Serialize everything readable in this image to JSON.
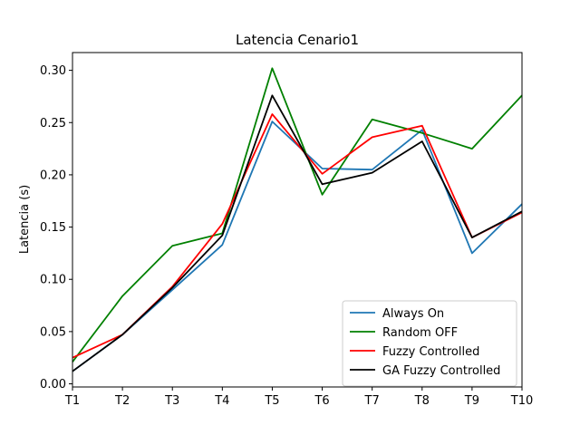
{
  "chart_data": {
    "type": "line",
    "title": "Latencia Cenario1",
    "xlabel": "",
    "ylabel": "Latencia (s)",
    "categories": [
      "T1",
      "T2",
      "T3",
      "T4",
      "T5",
      "T6",
      "T7",
      "T8",
      "T9",
      "T10"
    ],
    "ylim": [
      -0.003,
      0.317
    ],
    "yticks": [
      0.0,
      0.05,
      0.1,
      0.15,
      0.2,
      0.25,
      0.3
    ],
    "ytick_labels": [
      "0.00",
      "0.05",
      "0.10",
      "0.15",
      "0.20",
      "0.25",
      "0.30"
    ],
    "grid": false,
    "legend_position": "lower-right",
    "series": [
      {
        "name": "Always On",
        "color": "#1f77b4",
        "values": [
          0.012,
          0.047,
          0.09,
          0.133,
          0.251,
          0.206,
          0.205,
          0.243,
          0.125,
          0.172
        ]
      },
      {
        "name": "Random OFF",
        "color": "#008000",
        "values": [
          0.021,
          0.084,
          0.132,
          0.144,
          0.302,
          0.181,
          0.253,
          0.24,
          0.225,
          0.276
        ]
      },
      {
        "name": "Fuzzy Controlled",
        "color": "#ff0000",
        "values": [
          0.025,
          0.047,
          0.093,
          0.153,
          0.258,
          0.201,
          0.236,
          0.247,
          0.14,
          0.164
        ]
      },
      {
        "name": "GA Fuzzy Controlled",
        "color": "#000000",
        "values": [
          0.012,
          0.047,
          0.092,
          0.142,
          0.276,
          0.191,
          0.202,
          0.232,
          0.14,
          0.165
        ]
      }
    ]
  }
}
